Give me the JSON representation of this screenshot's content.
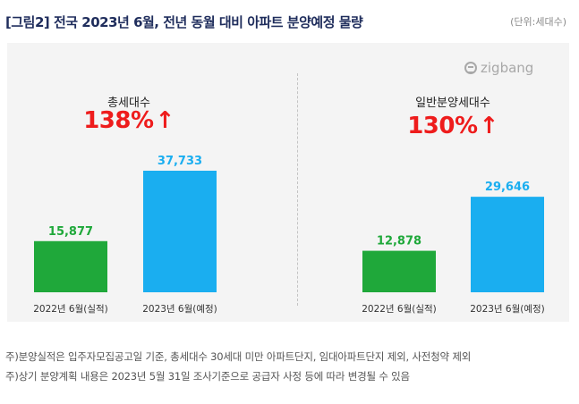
{
  "title": "[그림2] 전국 2023년 6월, 전년 동월 대비 아파트 분양예정 물량",
  "unit": "(단위:세대수)",
  "logo_text": "zigbang",
  "colors": {
    "actual": "#1fa83a",
    "planned": "#1aaef0",
    "growth": "#ee1c1c"
  },
  "chart_data": [
    {
      "type": "bar",
      "title": "총세대수",
      "growth": "138%",
      "categories": [
        "2022년 6월(실적)",
        "2023년 6월(예정)"
      ],
      "values": [
        15877,
        37733
      ],
      "value_labels": [
        "15,877",
        "37,733"
      ]
    },
    {
      "type": "bar",
      "title": "일반분양세대수",
      "growth": "130%",
      "categories": [
        "2022년 6월(실적)",
        "2023년 6월(예정)"
      ],
      "values": [
        12878,
        29646
      ],
      "value_labels": [
        "12,878",
        "29,646"
      ]
    }
  ],
  "footnotes": [
    "주)분양실적은 입주자모집공고일 기준, 총세대수 30세대 미만 아파트단지, 임대아파트단지 제외, 사전청약 제외",
    "주)상기 분양계획 내용은 2023년 5월 31일 조사기준으로 공급자 사정 등에 따라 변경될 수 있음"
  ]
}
